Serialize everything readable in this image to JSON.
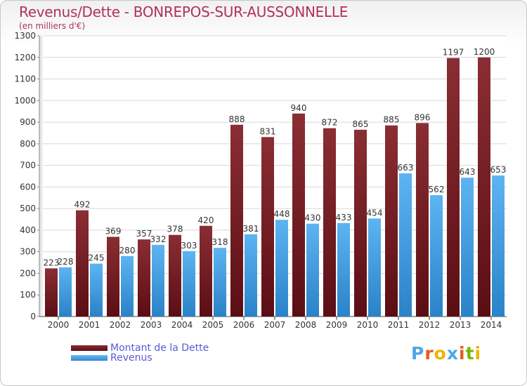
{
  "title": "Revenus/Dette - BONREPOS-SUR-AUSSONNELLE",
  "subtitle": "(en milliers d'€)",
  "colors": {
    "dette": "#7a1e24",
    "revenus": "#4da6e8",
    "title": "#b03060"
  },
  "logo": {
    "letters": [
      "P",
      "r",
      "o",
      "x",
      "i",
      "t",
      "i"
    ],
    "colors": [
      "#4da6e8",
      "#e85a1e",
      "#f0b400",
      "#4da6e8",
      "#e85a1e",
      "#7ab800",
      "#f0b400"
    ]
  },
  "chart_data": {
    "type": "bar",
    "categories": [
      "2000",
      "2001",
      "2002",
      "2003",
      "2004",
      "2005",
      "2006",
      "2007",
      "2008",
      "2009",
      "2010",
      "2011",
      "2012",
      "2013",
      "2014"
    ],
    "series": [
      {
        "name": "Montant de la Dette",
        "values": [
          223,
          492,
          369,
          357,
          378,
          420,
          888,
          831,
          940,
          872,
          865,
          885,
          896,
          1197,
          1200
        ]
      },
      {
        "name": "Revenus",
        "values": [
          228,
          245,
          280,
          332,
          303,
          318,
          381,
          448,
          430,
          433,
          454,
          663,
          562,
          643,
          653
        ]
      }
    ],
    "ylim": [
      0,
      1300
    ],
    "yticks": [
      0,
      100,
      200,
      300,
      400,
      500,
      600,
      700,
      800,
      900,
      1000,
      1100,
      1200,
      1300
    ],
    "grid": true,
    "legend_position": "bottom-left"
  }
}
